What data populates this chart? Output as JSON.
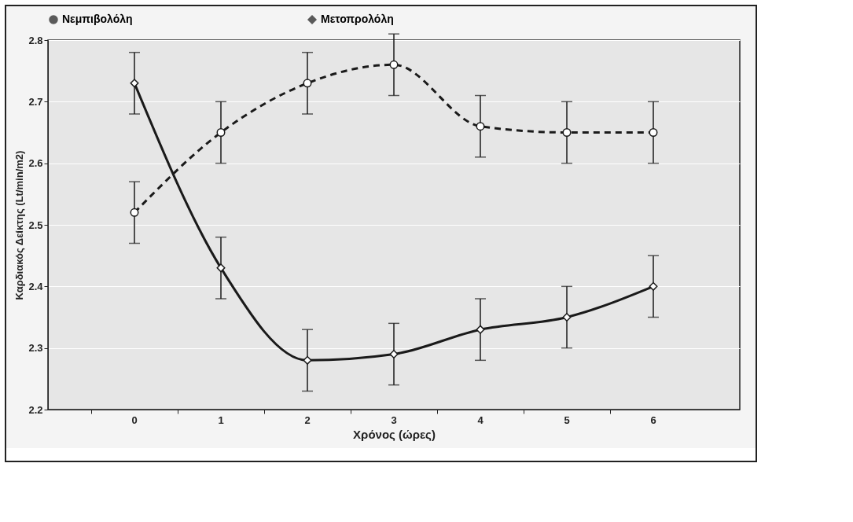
{
  "chart_data": {
    "type": "line",
    "xlabel": "Χρόνος (ώρες)",
    "ylabel": "Καρδιακός Δείκτης (Lt/min/m2)",
    "categories": [
      "0",
      "1",
      "2",
      "3",
      "4",
      "5",
      "6"
    ],
    "series": [
      {
        "name": "Νεμπιβολόλη",
        "color": "#1a1a1a",
        "marker": "circle",
        "line_style": "dashed",
        "values": [
          2.52,
          2.65,
          2.73,
          2.76,
          2.66,
          2.65,
          2.65
        ],
        "errors": [
          0.05,
          0.05,
          0.05,
          0.05,
          0.05,
          0.05,
          0.05
        ]
      },
      {
        "name": "Μετοπρολόλη",
        "color": "#1a1a1a",
        "marker": "diamond",
        "line_style": "solid",
        "values": [
          2.73,
          2.43,
          2.28,
          2.29,
          2.33,
          2.35,
          2.4
        ],
        "errors": [
          0.05,
          0.05,
          0.05,
          0.05,
          0.05,
          0.05,
          0.05
        ]
      }
    ],
    "ylim": [
      2.2,
      2.8
    ],
    "yticks": [
      2.2,
      2.3,
      2.4,
      2.5,
      2.6,
      2.7,
      2.8
    ],
    "grid": "y",
    "legend": "top"
  }
}
